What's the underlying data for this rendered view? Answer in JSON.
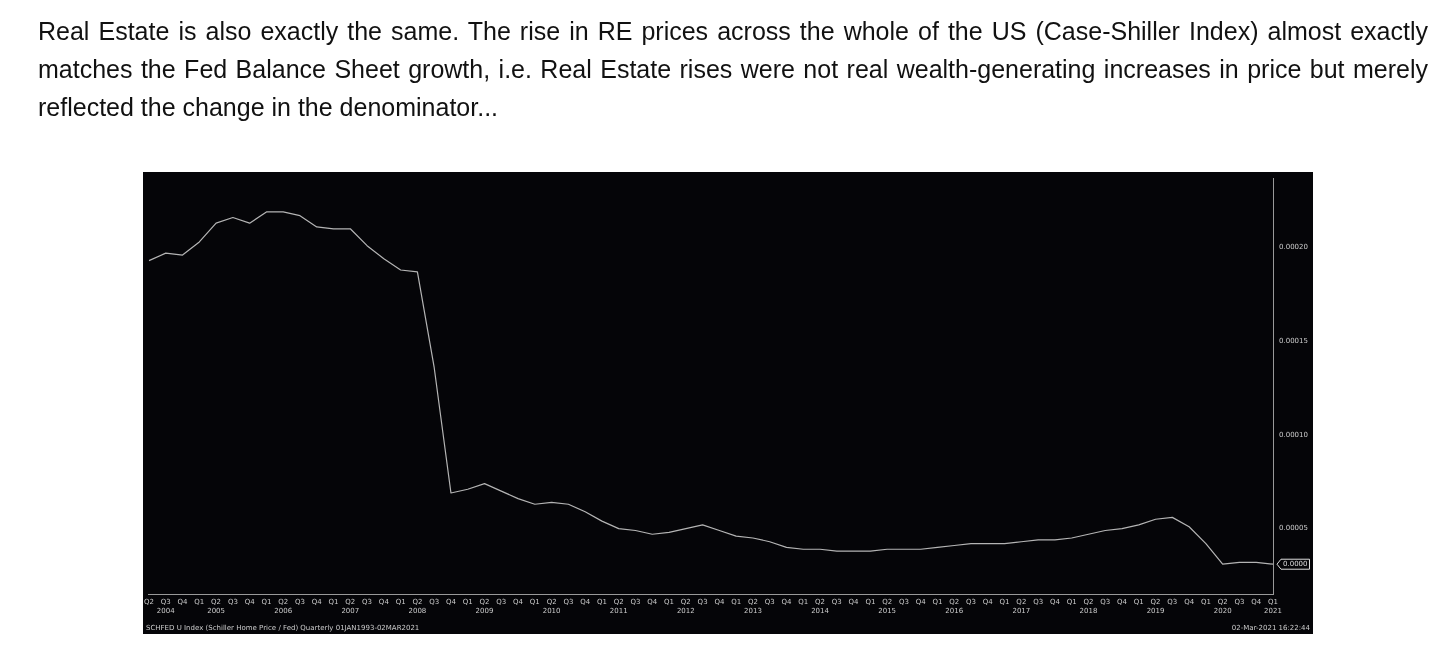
{
  "chart_data": {
    "type": "line",
    "title": "Real Estate is also exactly the same. The rise in RE prices across the whole of the US (Case-Shiller Index) almost exactly matches the Fed Balance Sheet growth, i.e. Real Estate rises were not real wealth-generating increases in price but merely reflected the change in the denominator...",
    "categories": [
      "Q2",
      "Q3\n2004",
      "Q4",
      "Q1",
      "Q2\n2005",
      "Q3",
      "Q4",
      "Q1",
      "Q2\n2006",
      "Q3",
      "Q4",
      "Q1",
      "Q2\n2007",
      "Q3",
      "Q4",
      "Q1",
      "Q2\n2008",
      "Q3",
      "Q4",
      "Q1",
      "Q2\n2009",
      "Q3",
      "Q4",
      "Q1",
      "Q2\n2010",
      "Q3",
      "Q4",
      "Q1",
      "Q2\n2011",
      "Q3",
      "Q4",
      "Q1",
      "Q2\n2012",
      "Q3",
      "Q4",
      "Q1",
      "Q2\n2013",
      "Q3",
      "Q4",
      "Q1",
      "Q2\n2014",
      "Q3",
      "Q4",
      "Q1",
      "Q2\n2015",
      "Q3",
      "Q4",
      "Q1",
      "Q2\n2016",
      "Q3",
      "Q4",
      "Q1",
      "Q2\n2017",
      "Q3",
      "Q4",
      "Q1",
      "Q2\n2018",
      "Q3",
      "Q4",
      "Q1",
      "Q2\n2019",
      "Q3",
      "Q4",
      "Q1",
      "Q2\n2020",
      "Q3",
      "Q4",
      "Q1\n2021"
    ],
    "series": [
      {
        "color": "#b4b4b4",
        "values": [
          0.000193,
          0.000197,
          0.000196,
          0.000203,
          0.000213,
          0.000216,
          0.000213,
          0.000219,
          0.000219,
          0.000217,
          0.000211,
          0.00021,
          0.00021,
          0.000201,
          0.000194,
          0.000188,
          0.000187,
          0.000136,
          6.9e-05,
          7.1e-05,
          7.4e-05,
          7e-05,
          6.6e-05,
          6.3e-05,
          6.4e-05,
          6.3e-05,
          5.9e-05,
          5.4e-05,
          5e-05,
          4.9e-05,
          4.7e-05,
          4.8e-05,
          5e-05,
          5.2e-05,
          4.9e-05,
          4.6e-05,
          4.5e-05,
          4.3e-05,
          4e-05,
          3.9e-05,
          3.9e-05,
          3.8e-05,
          3.8e-05,
          3.8e-05,
          3.9e-05,
          3.9e-05,
          3.9e-05,
          4e-05,
          4.1e-05,
          4.2e-05,
          4.2e-05,
          4.2e-05,
          4.3e-05,
          4.4e-05,
          4.4e-05,
          4.5e-05,
          4.7e-05,
          4.9e-05,
          5e-05,
          5.2e-05,
          5.5e-05,
          5.6e-05,
          5.1e-05,
          4.2e-05,
          3.1e-05,
          3.2e-05,
          3.2e-05,
          3.1e-05
        ],
        "value_labels": [
          null,
          null,
          null,
          null,
          null,
          null,
          null,
          null,
          null,
          null,
          null,
          null,
          null,
          null,
          null,
          null,
          null,
          null,
          null,
          null,
          null,
          null,
          null,
          null,
          null,
          null,
          null,
          null,
          null,
          null,
          null,
          null,
          null,
          null,
          null,
          null,
          null,
          null,
          null,
          null,
          null,
          null,
          null,
          null,
          null,
          null,
          null,
          null,
          null,
          null,
          null,
          null,
          null,
          null,
          null,
          null,
          null,
          null,
          null,
          null,
          null,
          null,
          null,
          null,
          null,
          null,
          null,
          "0.0000"
        ]
      }
    ],
    "ylim": [
      1.5e-05,
      0.000237
    ],
    "yticks": [
      {
        "value": 5e-05,
        "label": "0.00005"
      },
      {
        "value": 0.0001,
        "label": "0.00010"
      },
      {
        "value": 0.00015,
        "label": "0.00015"
      },
      {
        "value": 0.0002,
        "label": "0.00020"
      }
    ],
    "grid": false,
    "legend": false,
    "marker": "none",
    "line_style": "solid",
    "annotations": [
      "SCHFED U Index (Schiller Home Price / Fed)  Quarterly 01JAN1993-02MAR2021",
      "02-Mar-2021 16:22:44"
    ]
  }
}
